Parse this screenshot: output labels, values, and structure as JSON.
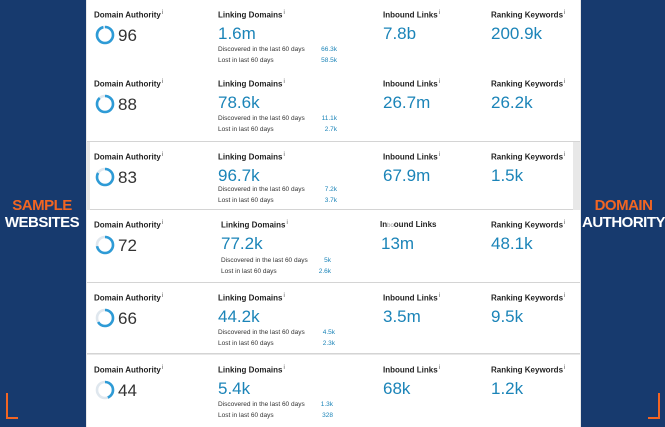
{
  "side": {
    "left": {
      "line1": "SAMPLE",
      "line2": "WEBSITES"
    },
    "right": {
      "line1": "DOMAIN",
      "line2": "AUTHORITY"
    }
  },
  "colors": {
    "background": "#173a6e",
    "accent": "#f26522",
    "value": "#1b84b8",
    "ring": "#2e9bd6"
  },
  "labels": {
    "domain_authority": "Domain Authority",
    "linking_domains": "Linking Domains",
    "inbound_links": "Inbound Links",
    "inbound_links_glitched": "In",
    "inbound_links_glitched_rest": "ound Links",
    "ranking_keywords": "Ranking Keywords",
    "discovered": "Discovered in the last 60 days",
    "lost": "Lost in last 60 days",
    "info_icon": "i"
  },
  "sites": [
    {
      "domain_authority": "96",
      "linking_domains": "1.6m",
      "discovered": "66.3k",
      "lost": "58.5k",
      "inbound_links": "7.8b",
      "ranking_keywords": "200.9k"
    },
    {
      "domain_authority": "88",
      "linking_domains": "78.6k",
      "discovered": "11.1k",
      "lost": "2.7k",
      "inbound_links": "26.7m",
      "ranking_keywords": "26.2k"
    },
    {
      "domain_authority": "83",
      "linking_domains": "96.7k",
      "discovered": "7.2k",
      "lost": "3.7k",
      "inbound_links": "67.9m",
      "ranking_keywords": "1.5k"
    },
    {
      "domain_authority": "72",
      "linking_domains": "77.2k",
      "discovered": "5k",
      "lost": "2.6k",
      "inbound_links": "13m",
      "ranking_keywords": "48.1k"
    },
    {
      "domain_authority": "66",
      "linking_domains": "44.2k",
      "discovered": "4.5k",
      "lost": "2.3k",
      "inbound_links": "3.5m",
      "ranking_keywords": "9.5k"
    },
    {
      "domain_authority": "44",
      "linking_domains": "5.4k",
      "discovered": "1.3k",
      "lost": "328",
      "inbound_links": "68k",
      "ranking_keywords": "1.2k"
    }
  ]
}
